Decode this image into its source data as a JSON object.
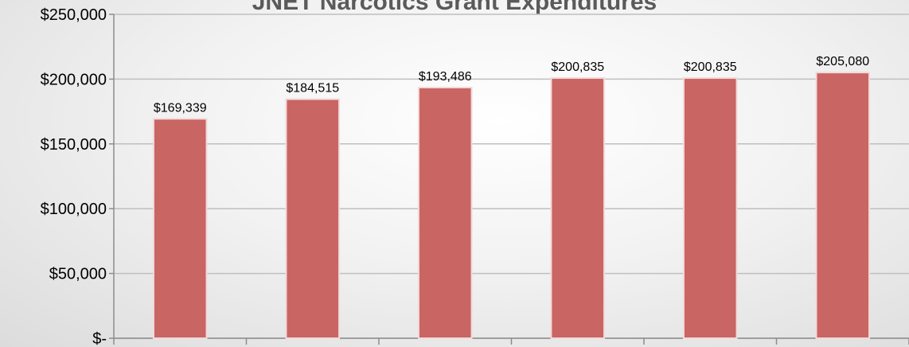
{
  "chart_data": {
    "type": "bar",
    "title": "JNET Narcotics Grant Expenditures",
    "categories": [
      "",
      "",
      "",
      "",
      "",
      ""
    ],
    "values": [
      169339,
      184515,
      193486,
      200835,
      200835,
      205080
    ],
    "data_labels": [
      "$169,339",
      "$184,515",
      "$193,486",
      "$200,835",
      "$200,835",
      "$205,080"
    ],
    "ylim": [
      0,
      250000
    ],
    "yticks": [
      0,
      50000,
      100000,
      150000,
      200000,
      250000
    ],
    "ytick_labels": [
      "$-",
      "$50,000",
      "$100,000",
      "$150,000",
      "$200,000",
      "$250,000"
    ],
    "grid": true,
    "legend": "none",
    "bar_color": "#c96563",
    "bar_edge_color": "#f2dada",
    "grid_color": "#bfbfbf"
  }
}
